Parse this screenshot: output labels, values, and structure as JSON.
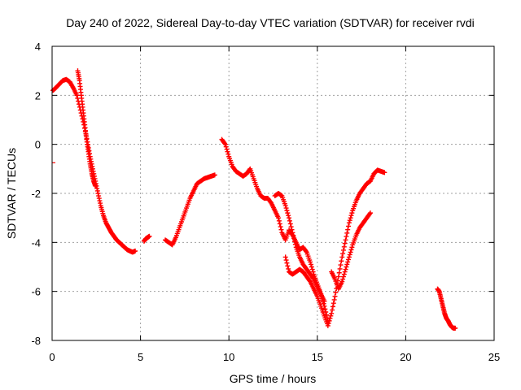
{
  "chart_data": {
    "type": "scatter",
    "title": "Day 240 of 2022, Sidereal Day-to-day VTEC variation (SDTVAR) for receiver rvdi",
    "xlabel": "GPS time / hours",
    "ylabel": "SDTVAR / TECUs",
    "xlim": [
      0,
      25
    ],
    "ylim": [
      -8,
      4
    ],
    "xticks": [
      0,
      5,
      10,
      15,
      20,
      25
    ],
    "yticks": [
      -8,
      -6,
      -4,
      -2,
      0,
      2,
      4
    ],
    "grid": true,
    "marker": "+",
    "series_color": "#ff0000",
    "segments": [
      {
        "name": "seg1",
        "x": [
          0.05,
          0.2,
          0.4,
          0.6,
          0.8,
          1.0,
          1.2,
          1.4,
          1.6,
          1.8,
          2.0,
          2.15,
          2.3,
          2.45,
          2.6,
          2.75,
          2.9,
          3.05,
          3.2,
          3.35,
          3.5,
          3.65,
          3.8,
          3.95,
          4.1,
          4.25,
          4.4,
          4.55,
          4.7
        ],
        "y": [
          2.2,
          2.3,
          2.45,
          2.6,
          2.65,
          2.55,
          2.3,
          2.0,
          1.4,
          0.8,
          0.1,
          -0.5,
          -1.0,
          -1.5,
          -2.0,
          -2.5,
          -2.9,
          -3.2,
          -3.4,
          -3.6,
          -3.75,
          -3.9,
          -4.0,
          -4.1,
          -4.2,
          -4.3,
          -4.35,
          -4.4,
          -4.35
        ]
      },
      {
        "name": "seg2",
        "x": [
          1.45,
          1.55,
          1.65,
          1.75,
          1.85,
          1.95,
          2.05,
          2.15,
          2.25,
          2.35,
          2.45
        ],
        "y": [
          3.0,
          2.6,
          2.0,
          1.4,
          0.8,
          0.2,
          -0.3,
          -0.8,
          -1.2,
          -1.5,
          -1.7
        ]
      },
      {
        "name": "seg3",
        "x": [
          5.2,
          5.3,
          5.4,
          5.5
        ],
        "y": [
          -3.95,
          -3.85,
          -3.8,
          -3.75
        ]
      },
      {
        "name": "seg4",
        "x": [
          6.4,
          6.6,
          6.8,
          7.0,
          7.2,
          7.4,
          7.6,
          7.8,
          8.0,
          8.2,
          8.4,
          8.6,
          8.8,
          9.0,
          9.2
        ],
        "y": [
          -3.9,
          -4.0,
          -4.1,
          -3.8,
          -3.4,
          -3.0,
          -2.6,
          -2.2,
          -1.9,
          -1.6,
          -1.5,
          -1.4,
          -1.35,
          -1.3,
          -1.25
        ]
      },
      {
        "name": "seg5",
        "x": [
          9.6,
          9.8,
          10.0,
          10.2,
          10.4,
          10.6,
          10.8,
          11.0,
          11.2,
          11.4,
          11.6,
          11.8,
          12.0,
          12.2,
          12.4,
          12.6,
          12.8,
          13.0,
          13.2,
          13.4,
          13.6,
          13.8,
          14.0,
          14.2,
          14.4,
          14.6,
          14.8,
          15.0,
          15.2,
          15.4,
          15.6
        ],
        "y": [
          0.2,
          0.0,
          -0.5,
          -0.9,
          -1.1,
          -1.2,
          -1.3,
          -1.2,
          -1.0,
          -1.4,
          -1.8,
          -2.1,
          -2.2,
          -2.2,
          -2.4,
          -2.7,
          -3.0,
          -3.6,
          -3.9,
          -3.5,
          -3.7,
          -4.0,
          -4.3,
          -4.2,
          -4.4,
          -4.8,
          -5.3,
          -5.7,
          -6.1,
          -6.6,
          -7.2
        ]
      },
      {
        "name": "seg6",
        "x": [
          12.6,
          12.8,
          13.0,
          13.2,
          13.4,
          13.6,
          13.8,
          14.0,
          14.2,
          14.4,
          14.6,
          14.8,
          15.0,
          15.2,
          15.4
        ],
        "y": [
          -2.1,
          -2.0,
          -2.1,
          -2.5,
          -3.0,
          -3.6,
          -4.2,
          -4.6,
          -4.9,
          -5.1,
          -5.3,
          -5.5,
          -5.8,
          -6.1,
          -6.4
        ]
      },
      {
        "name": "seg7",
        "x": [
          13.2,
          13.4,
          13.6,
          13.8,
          14.0,
          14.2,
          14.4,
          14.6,
          14.8,
          15.0,
          15.2,
          15.4,
          15.6,
          15.8,
          16.0,
          16.2,
          16.4,
          16.6,
          16.8,
          17.0,
          17.2,
          17.4,
          17.6,
          17.8,
          18.0,
          18.2,
          18.4,
          18.6,
          18.8
        ],
        "y": [
          -4.6,
          -5.2,
          -5.3,
          -5.2,
          -5.1,
          -5.2,
          -5.4,
          -5.6,
          -5.9,
          -6.2,
          -6.6,
          -7.0,
          -7.4,
          -6.9,
          -6.2,
          -5.4,
          -4.6,
          -3.9,
          -3.2,
          -2.7,
          -2.3,
          -2.0,
          -1.8,
          -1.6,
          -1.5,
          -1.2,
          -1.05,
          -1.1,
          -1.15
        ]
      },
      {
        "name": "seg8",
        "x": [
          15.8,
          16.0,
          16.2,
          16.4,
          16.6,
          16.8,
          17.0,
          17.2,
          17.4,
          17.6,
          17.8,
          18.0
        ],
        "y": [
          -5.2,
          -5.5,
          -5.9,
          -5.6,
          -5.1,
          -4.6,
          -4.1,
          -3.7,
          -3.4,
          -3.2,
          -3.0,
          -2.8
        ]
      },
      {
        "name": "seg9",
        "x": [
          21.8,
          21.9,
          22.0,
          22.1,
          22.2,
          22.3,
          22.4,
          22.5,
          22.6,
          22.7,
          22.8
        ],
        "y": [
          -5.9,
          -6.0,
          -6.3,
          -6.6,
          -6.9,
          -7.1,
          -7.2,
          -7.35,
          -7.45,
          -7.5,
          -7.5
        ]
      }
    ],
    "stray_dash": {
      "x": 0,
      "y": -0.75
    }
  }
}
